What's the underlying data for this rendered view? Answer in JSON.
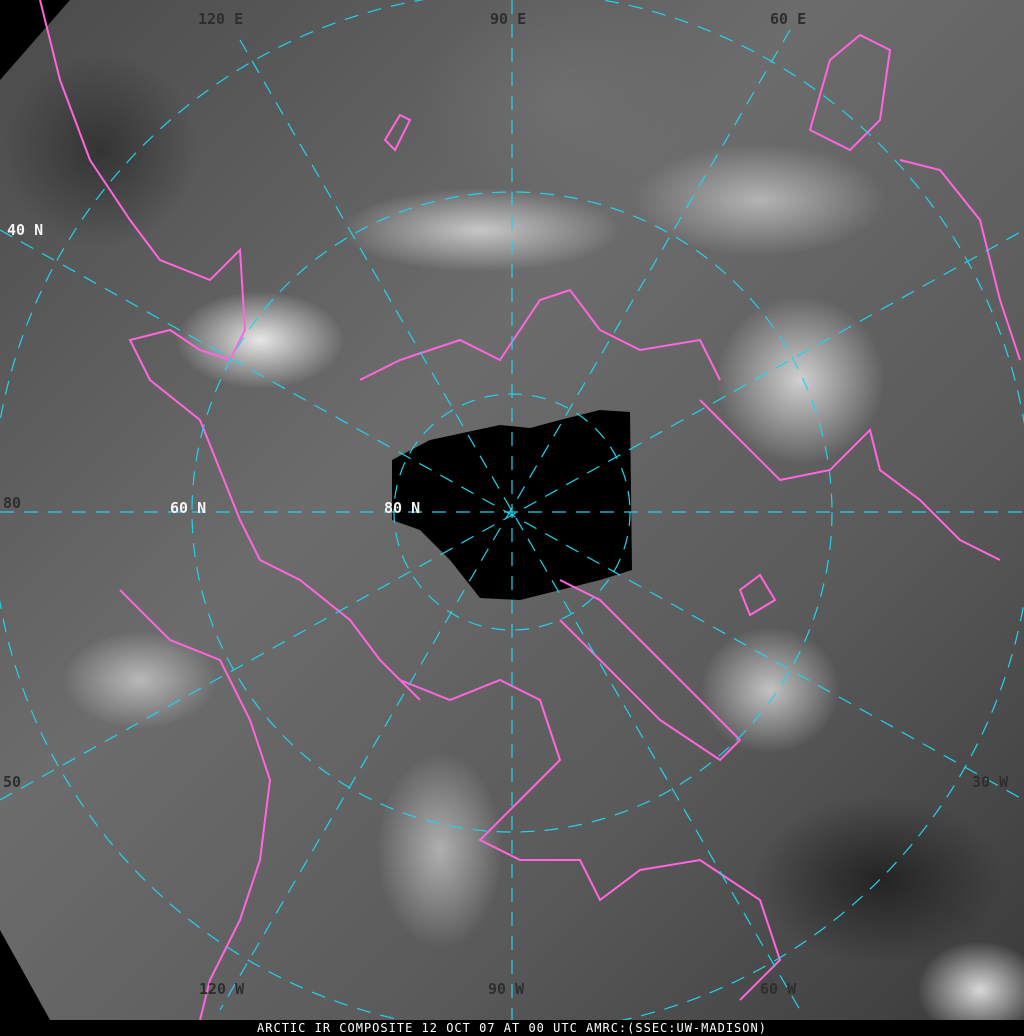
{
  "caption": "ARCTIC IR COMPOSITE 12 OCT 07 AT 00 UTC AMRC:(SSEC:UW-MADISON)",
  "labels": {
    "top_120": "120 E",
    "top_90": "90 E",
    "top_60": "60 E",
    "left_40n": "40 N",
    "left_80": "80",
    "mid_60n": "60 N",
    "mid_80n": "80 N",
    "left_50": "50",
    "right_30": "30 W",
    "bottom_120": "120 W",
    "bottom_90": "90 W",
    "bottom_60": "60 W"
  },
  "colors": {
    "grid": "#22d3ee",
    "coastline": "#ff66dd",
    "no_data": "#000000",
    "caption_bg": "#000000",
    "caption_text": "#ffffff"
  }
}
